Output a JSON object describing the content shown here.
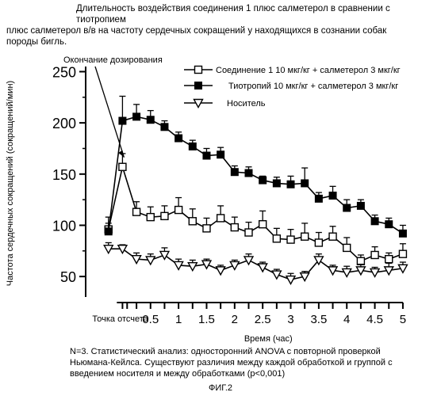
{
  "caption": {
    "line1": "Длительность воздействия соединения 1 плюс салметерол в сравнении с тиотропием",
    "line2": "плюс салметерол в/в на частоту сердечных сокращений у находящихся в сознании собак",
    "line3": "породы бигль."
  },
  "note": {
    "line1": "N=3. Статистический анализ: односторонний ANOVA с повторной проверкой",
    "line2": "Ньюмана-Кейлса. Существуют различия между каждой обработкой и группой с",
    "line3": "введением носителя и между обработками (p<0,001)"
  },
  "figure_label": "ФИГ.2",
  "chart_data": {
    "type": "line",
    "ylabel": "Частота сердечных сокращений (сокращений/мин)",
    "xlabel": "Время (час)",
    "annotation": "Окончание дозирования",
    "ylim": [
      30,
      255
    ],
    "xlim": [
      -0.6,
      5.1
    ],
    "yticks": [
      50,
      100,
      150,
      200,
      250
    ],
    "xticks": [
      {
        "x": 0,
        "label": "Точка отсчета"
      },
      {
        "x": 0.5,
        "label": "0.5"
      },
      {
        "x": 1,
        "label": "1"
      },
      {
        "x": 1.5,
        "label": "1.5"
      },
      {
        "x": 2,
        "label": "2"
      },
      {
        "x": 2.5,
        "label": "2.5"
      },
      {
        "x": 3,
        "label": "3"
      },
      {
        "x": 3.5,
        "label": "3.5"
      },
      {
        "x": 4,
        "label": "4"
      },
      {
        "x": 4.5,
        "label": "4.5"
      },
      {
        "x": 5,
        "label": "5"
      }
    ],
    "minor_xticks": [
      0.083,
      0.25,
      0.75,
      1.25,
      1.75,
      2.25,
      2.75,
      3.25,
      3.75,
      4.25,
      4.75
    ],
    "x": [
      -0.25,
      0,
      0.25,
      0.5,
      0.75,
      1,
      1.25,
      1.5,
      1.75,
      2,
      2.25,
      2.5,
      2.75,
      3,
      3.25,
      3.5,
      3.75,
      4,
      4.25,
      4.5,
      4.75,
      5
    ],
    "legend_position": "top-right",
    "series": [
      {
        "name": "Соединение 1 10 мкг/кг + салметерол 3 мкг/кг",
        "marker": "open-square",
        "values": [
          96,
          157,
          113,
          108,
          109,
          115,
          104,
          97,
          107,
          98,
          93,
          101,
          87,
          86,
          89,
          83,
          89,
          78,
          65,
          71,
          67,
          72
        ],
        "errors": [
          12,
          13,
          10,
          10,
          10,
          12,
          12,
          10,
          12,
          10,
          10,
          13,
          10,
          10,
          13,
          10,
          10,
          10,
          6,
          8,
          6,
          10
        ]
      },
      {
        "name": "Тиотропий 10 мкг/кг + салметерол 3 мкг/кг",
        "marker": "filled-square",
        "values": [
          94,
          202,
          206,
          203,
          196,
          185,
          177,
          168,
          169,
          152,
          151,
          144,
          141,
          140,
          141,
          126,
          129,
          117,
          119,
          104,
          101,
          92
        ],
        "errors": [
          8,
          24,
          12,
          9,
          6,
          6,
          6,
          7,
          7,
          6,
          6,
          4,
          6,
          8,
          15,
          6,
          9,
          8,
          6,
          6,
          6,
          8
        ]
      },
      {
        "name": "Носитель",
        "marker": "open-triangle",
        "values": [
          77,
          77,
          67,
          66,
          71,
          61,
          60,
          62,
          56,
          61,
          66,
          59,
          52,
          47,
          50,
          66,
          56,
          54,
          56,
          54,
          56,
          58
        ],
        "errors": [
          6,
          4,
          6,
          6,
          7,
          6,
          6,
          5,
          5,
          5,
          6,
          5,
          5,
          6,
          5,
          6,
          5,
          6,
          6,
          5,
          7,
          6
        ]
      }
    ]
  }
}
